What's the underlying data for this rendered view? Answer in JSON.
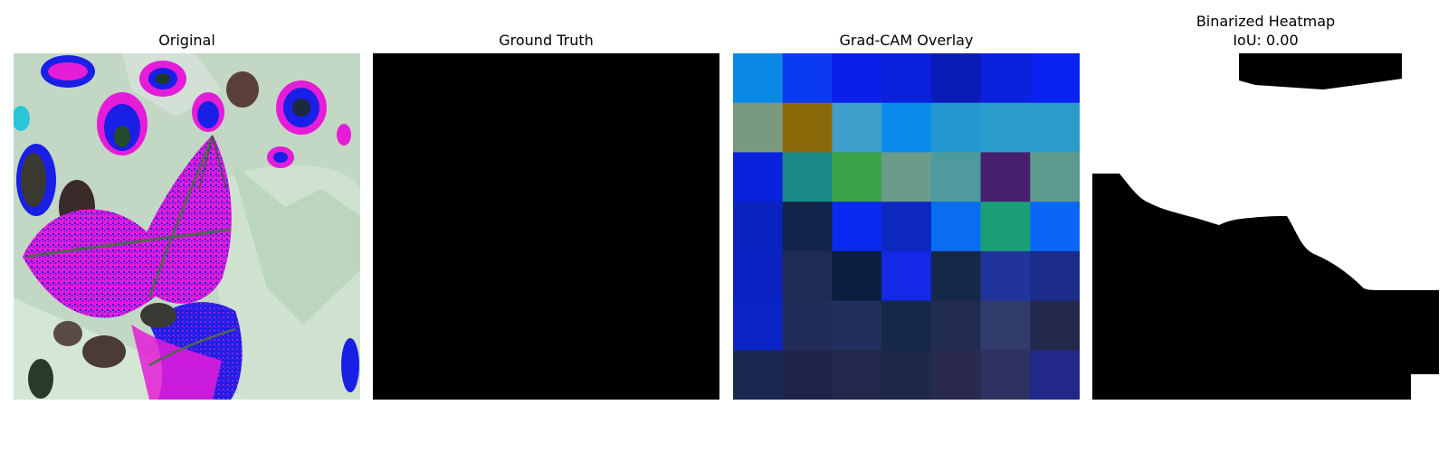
{
  "panels": [
    {
      "title": "Original"
    },
    {
      "title": "Ground Truth"
    },
    {
      "title": "Grad-CAM Overlay"
    },
    {
      "title": "Binarized Heatmap",
      "subtitle": "IoU: 0.00"
    }
  ],
  "colors": {
    "background": "#ffffff",
    "ground_truth": "#000000",
    "binary_foreground": "#000000",
    "binary_background": "#ffffff",
    "leaf_pale": "#c5dcc6",
    "magenta": "#e51cd8",
    "blue": "#1a1fe6"
  },
  "gradcam_grid": [
    [
      "#0a88e6",
      "#0a3bf0",
      "#0a20ea",
      "#0a22dd",
      "#0a1cb8",
      "#0a22dc",
      "#0a22ef"
    ],
    [
      "#7a9a80",
      "#8a6a08",
      "#3f9fcb",
      "#0a8ced",
      "#2499d0",
      "#2a9ccc",
      "#2a9ccc"
    ],
    [
      "#0a22dd",
      "#1a8a88",
      "#3ca24a",
      "#6a9a8c",
      "#4f9a9e",
      "#46206e",
      "#5e9a8e"
    ],
    [
      "#0a22c0",
      "#13244a",
      "#0a2af2",
      "#0c28c0",
      "#0a6cf0",
      "#1a9e78",
      "#0a66f6"
    ],
    [
      "#0a22c2",
      "#1e2b52",
      "#0a1f40",
      "#1428e8",
      "#15284a",
      "#20349a",
      "#1c2c8a"
    ],
    [
      "#0a24c8",
      "#222c5a",
      "#222e5c",
      "#15284a",
      "#222c52",
      "#323c6c",
      "#22284a"
    ],
    [
      "#1a2850",
      "#1e2248",
      "#22284c",
      "#1e2848",
      "#2a2a4e",
      "#2e3262",
      "#22288a"
    ]
  ]
}
